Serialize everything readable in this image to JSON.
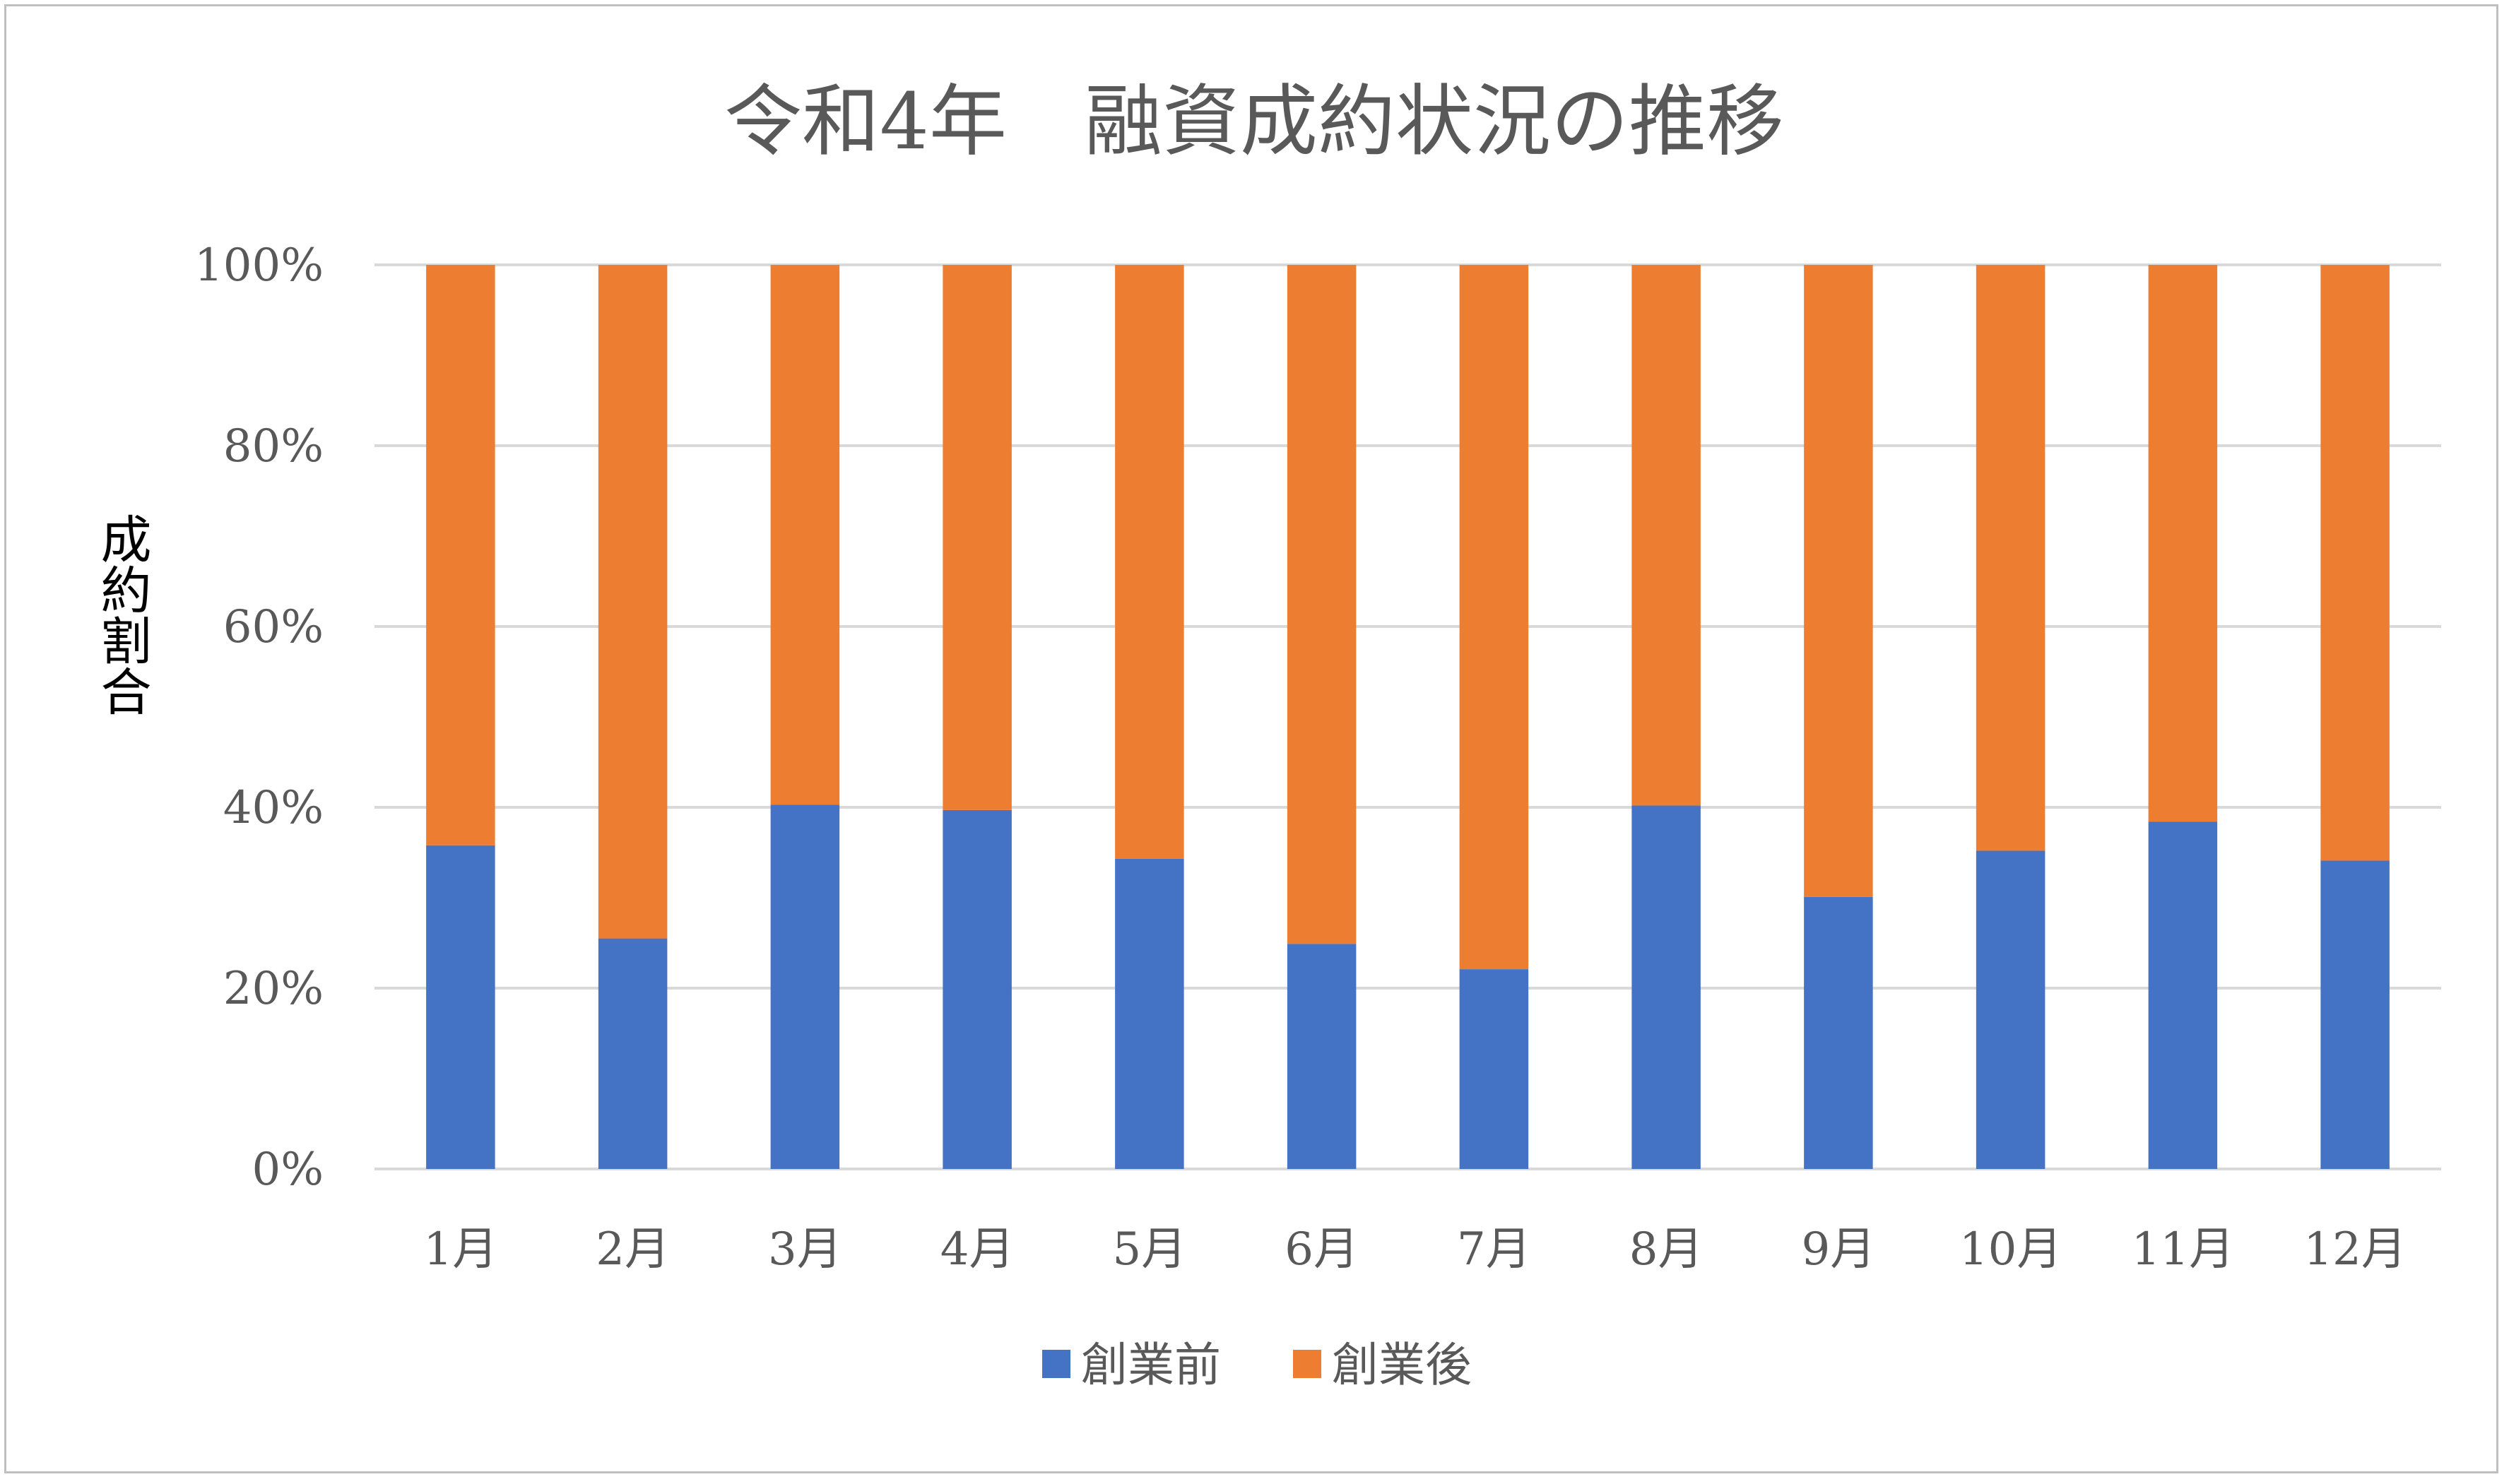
{
  "chart_data": {
    "type": "bar",
    "stacked": true,
    "percent": true,
    "title": "令和4年　融資成約状況の推移",
    "xlabel": "",
    "ylabel": "成約割合",
    "ylim": [
      0,
      100
    ],
    "yticks": [
      "0%",
      "20%",
      "40%",
      "60%",
      "80%",
      "100%"
    ],
    "grid": true,
    "legend_position": "bottom",
    "categories": [
      "1月",
      "2月",
      "3月",
      "4月",
      "5月",
      "6月",
      "7月",
      "8月",
      "9月",
      "10月",
      "11月",
      "12月"
    ],
    "series": [
      {
        "name": "創業前",
        "color": "#4472C4",
        "values": [
          35.8,
          25.5,
          40.3,
          39.7,
          34.3,
          24.9,
          22.1,
          40.2,
          30.1,
          35.2,
          38.4,
          34.1
        ]
      },
      {
        "name": "創業後",
        "color": "#ED7D31",
        "values": [
          64.2,
          74.5,
          59.7,
          60.3,
          65.7,
          75.1,
          77.9,
          59.8,
          69.9,
          64.8,
          61.6,
          65.9
        ]
      }
    ],
    "gridline_color": "#d9d9d9",
    "frame_color": "#bfbfbf"
  }
}
